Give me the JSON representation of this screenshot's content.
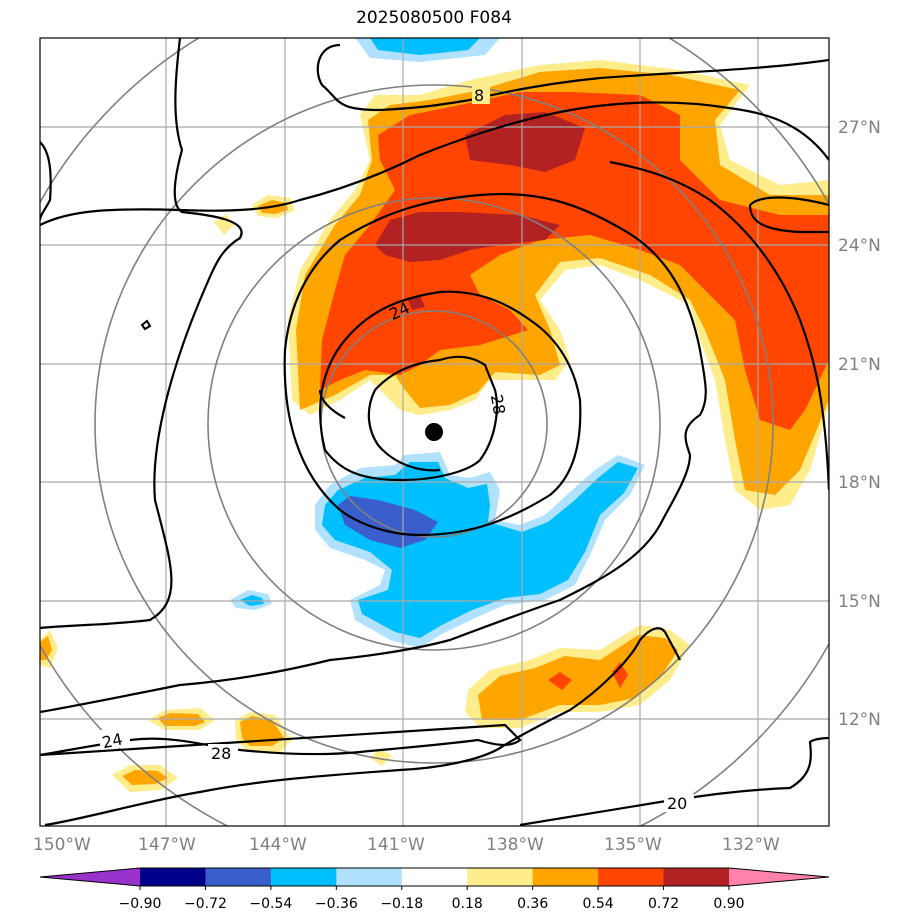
{
  "title": "2025080500 F084",
  "map": {
    "lon_ticks": [
      "150°W",
      "147°W",
      "144°W",
      "141°W",
      "138°W",
      "135°W",
      "132°W"
    ],
    "lat_ticks": [
      "27°N",
      "24°N",
      "21°N",
      "18°N",
      "15°N",
      "12°N"
    ],
    "contour_labels": [
      "8",
      "24",
      "28",
      "24",
      "28",
      "20"
    ],
    "center_marker": "storm-center"
  },
  "colorbar": {
    "levels": [
      "−0.90",
      "−0.72",
      "−0.54",
      "−0.36",
      "−0.18",
      "0.18",
      "0.36",
      "0.54",
      "0.72",
      "0.90"
    ],
    "colors": [
      "#9932cc",
      "#00008b",
      "#3a5fcd",
      "#00bfff",
      "#b0e2ff",
      "#ffffff",
      "#ffec8b",
      "#ffa500",
      "#ff4500",
      "#b22222",
      "#ff82ab"
    ]
  }
}
